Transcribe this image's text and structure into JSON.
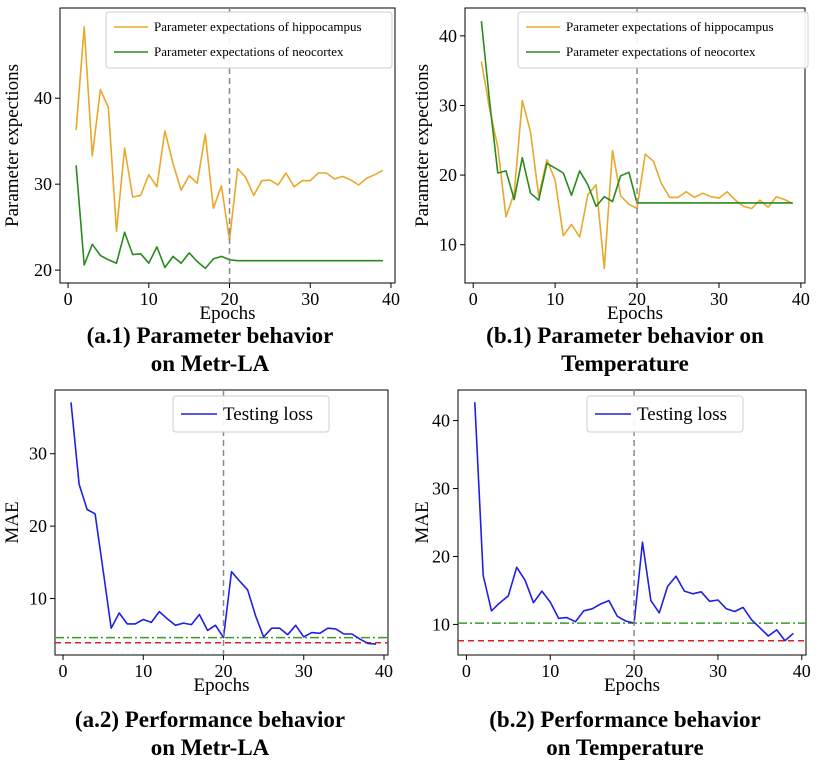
{
  "colors": {
    "hippocampus": "#e8a82c",
    "neocortex": "#2a8a1e",
    "loss": "#1f1fe6",
    "vline": "#8a8a8a",
    "red_ref": "#e02020",
    "green_ref": "#3a9a2a"
  },
  "charts": [
    {
      "id": "a1",
      "chart_data": {
        "type": "line",
        "xlabel": "Epochs",
        "ylabel": "Parameter expections",
        "xlim": [
          -1,
          40.5
        ],
        "ylim": [
          18.5,
          50.5
        ],
        "xticks": [
          0,
          10,
          20,
          30,
          40
        ],
        "yticks": [
          20,
          30,
          40
        ],
        "vline": 20,
        "legend_position": "top-right",
        "grid": false,
        "series": [
          {
            "name": "Parameter expectations of hippocampus",
            "color_key": "hippocampus",
            "x": [
              1,
              2,
              3,
              4,
              5,
              6,
              7,
              8,
              9,
              10,
              11,
              12,
              13,
              14,
              15,
              16,
              17,
              18,
              19,
              20,
              21,
              22,
              23,
              24,
              25,
              26,
              27,
              28,
              29,
              30,
              31,
              32,
              33,
              34,
              35,
              36,
              37,
              38,
              39
            ],
            "y": [
              36.3,
              48.3,
              33.3,
              41.0,
              38.9,
              24.5,
              34.2,
              28.5,
              28.7,
              31.1,
              29.7,
              36.2,
              32.4,
              29.3,
              31.0,
              30.1,
              35.8,
              27.2,
              29.8,
              23.5,
              31.8,
              30.8,
              28.7,
              30.4,
              30.5,
              29.9,
              31.3,
              29.7,
              30.4,
              30.4,
              31.3,
              31.3,
              30.6,
              30.9,
              30.5,
              29.9,
              30.7,
              31.1,
              31.6
            ]
          },
          {
            "name": "Parameter expectations of neocortex",
            "color_key": "neocortex",
            "x": [
              1,
              2,
              3,
              4,
              5,
              6,
              7,
              8,
              9,
              10,
              11,
              12,
              13,
              14,
              15,
              16,
              17,
              18,
              19,
              20,
              21,
              39
            ],
            "y": [
              32.2,
              20.6,
              23.0,
              21.7,
              21.2,
              20.8,
              24.4,
              21.8,
              21.9,
              20.8,
              22.7,
              20.3,
              21.6,
              20.8,
              22.0,
              21.0,
              20.2,
              21.3,
              21.6,
              21.2,
              21.1,
              21.1
            ]
          }
        ]
      },
      "caption": [
        "(a.1) Parameter behavior",
        "on Metr-LA"
      ]
    },
    {
      "id": "b1",
      "chart_data": {
        "type": "line",
        "xlabel": "Epochs",
        "ylabel": "Parameter expections",
        "xlim": [
          -1,
          40.5
        ],
        "ylim": [
          4.5,
          44
        ],
        "xticks": [
          0,
          10,
          20,
          30,
          40
        ],
        "yticks": [
          10,
          20,
          30,
          40
        ],
        "vline": 20,
        "legend_position": "top-right",
        "grid": false,
        "series": [
          {
            "name": "Parameter expectations of hippocampus",
            "color_key": "hippocampus",
            "x": [
              1,
              2,
              3,
              4,
              5,
              6,
              7,
              8,
              9,
              10,
              11,
              12,
              13,
              14,
              15,
              16,
              17,
              18,
              19,
              20,
              21,
              22,
              23,
              24,
              25,
              26,
              27,
              28,
              29,
              30,
              31,
              32,
              33,
              34,
              35,
              36,
              37,
              38,
              39
            ],
            "y": [
              36.3,
              29.5,
              24.0,
              14.0,
              17.4,
              30.7,
              26.2,
              17.0,
              22.2,
              19.3,
              11.3,
              12.9,
              11.1,
              17.2,
              18.6,
              6.6,
              23.5,
              17.0,
              15.8,
              15.2,
              23.0,
              22.0,
              18.7,
              16.8,
              16.8,
              17.6,
              16.8,
              17.4,
              16.9,
              16.7,
              17.6,
              16.4,
              15.5,
              15.2,
              16.4,
              15.4,
              16.9,
              16.5,
              15.9
            ]
          },
          {
            "name": "Parameter expectations of neocortex",
            "color_key": "neocortex",
            "x": [
              1,
              2,
              3,
              4,
              5,
              6,
              7,
              8,
              9,
              10,
              11,
              12,
              13,
              14,
              15,
              16,
              17,
              18,
              19,
              20,
              21,
              39
            ],
            "y": [
              42.1,
              30.6,
              20.3,
              20.6,
              16.5,
              22.5,
              17.4,
              16.4,
              21.7,
              21.0,
              20.3,
              17.1,
              20.6,
              18.6,
              15.5,
              16.9,
              16.2,
              19.9,
              20.4,
              16.0,
              16.0,
              16.0
            ]
          }
        ]
      },
      "caption": [
        "(b.1) Parameter behavior on",
        "Temperature"
      ]
    },
    {
      "id": "a2",
      "chart_data": {
        "type": "line",
        "xlabel": "Epochs",
        "ylabel": "MAE",
        "xlim": [
          -1,
          40.5
        ],
        "ylim": [
          2.2,
          38.8
        ],
        "xticks": [
          0,
          10,
          20,
          30,
          40
        ],
        "yticks": [
          10,
          20,
          30
        ],
        "vline": 20,
        "hlines": [
          {
            "y": 4.6,
            "color_key": "green_ref",
            "style": "dashdot"
          },
          {
            "y": 3.9,
            "color_key": "red_ref",
            "style": "dashed"
          }
        ],
        "legend_position": "top-right",
        "grid": false,
        "series": [
          {
            "name": "Testing loss",
            "color_key": "loss",
            "x": [
              1,
              2,
              3,
              4,
              5,
              6,
              7,
              8,
              9,
              10,
              11,
              12,
              13,
              14,
              15,
              16,
              17,
              18,
              19,
              20,
              21,
              22,
              23,
              24,
              25,
              26,
              27,
              28,
              29,
              30,
              31,
              32,
              33,
              34,
              35,
              36,
              37,
              38,
              39
            ],
            "y": [
              37.1,
              25.8,
              22.3,
              21.7,
              13.9,
              5.9,
              8.0,
              6.5,
              6.5,
              7.1,
              6.7,
              8.2,
              7.2,
              6.3,
              6.6,
              6.4,
              7.8,
              5.6,
              6.3,
              4.6,
              13.7,
              12.4,
              11.2,
              7.6,
              4.7,
              5.9,
              5.9,
              5.0,
              6.3,
              4.7,
              5.3,
              5.2,
              5.9,
              5.8,
              5.1,
              5.1,
              4.4,
              3.8,
              3.7
            ]
          }
        ]
      },
      "caption": [
        "(a.2) Performance behavior",
        "on Metr-LA"
      ]
    },
    {
      "id": "b2",
      "chart_data": {
        "type": "line",
        "xlabel": "Epochs",
        "ylabel": "MAE",
        "xlim": [
          -1,
          40.5
        ],
        "ylim": [
          5.5,
          44.5
        ],
        "xticks": [
          0,
          10,
          20,
          30,
          40
        ],
        "yticks": [
          10,
          20,
          30,
          40
        ],
        "vline": 20,
        "hlines": [
          {
            "y": 10.2,
            "color_key": "green_ref",
            "style": "dashdot"
          },
          {
            "y": 7.6,
            "color_key": "red_ref",
            "style": "dashed"
          }
        ],
        "legend_position": "top-right",
        "grid": false,
        "series": [
          {
            "name": "Testing loss",
            "color_key": "loss",
            "x": [
              1,
              2,
              3,
              4,
              5,
              6,
              7,
              8,
              9,
              10,
              11,
              12,
              13,
              14,
              15,
              16,
              17,
              18,
              19,
              20,
              21,
              22,
              23,
              24,
              25,
              26,
              27,
              28,
              29,
              30,
              31,
              32,
              33,
              34,
              35,
              36,
              37,
              38,
              39
            ],
            "y": [
              42.7,
              17.2,
              12.0,
              13.2,
              14.2,
              18.4,
              16.5,
              13.2,
              14.9,
              13.3,
              10.9,
              11.0,
              10.4,
              12.0,
              12.3,
              13.0,
              13.5,
              11.2,
              10.5,
              10.2,
              22.1,
              13.5,
              11.7,
              15.6,
              17.1,
              14.9,
              14.5,
              14.8,
              13.4,
              13.6,
              12.3,
              11.9,
              12.5,
              10.7,
              9.5,
              8.3,
              9.2,
              7.6,
              8.7
            ]
          }
        ]
      },
      "caption": [
        "(b.2) Performance behavior",
        "on Temperature"
      ]
    }
  ]
}
